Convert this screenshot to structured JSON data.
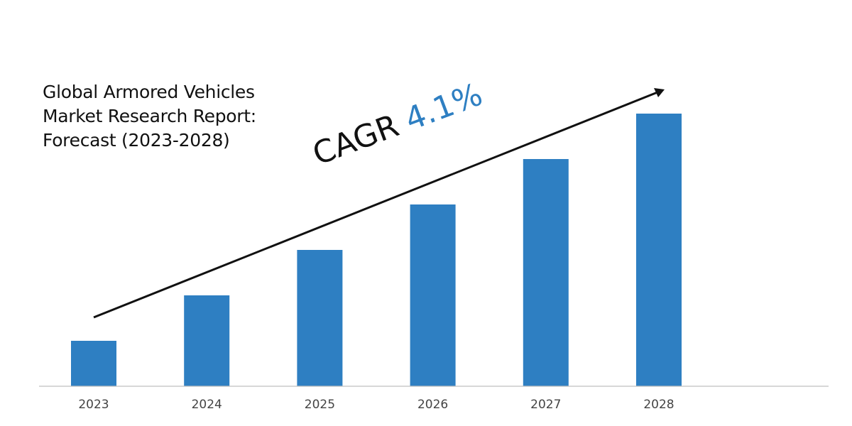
{
  "chart_data": {
    "type": "bar",
    "title_lines": [
      "Global Armored Vehicles",
      "Market Research Report:",
      "Forecast (2023-2028)"
    ],
    "categories": [
      "2023",
      "2024",
      "2025",
      "2026",
      "2027",
      "2028"
    ],
    "values": [
      1.0,
      2.0,
      3.0,
      4.0,
      5.0,
      6.0
    ],
    "ylim": [
      0,
      6.25
    ],
    "xlabel": "",
    "ylabel": "",
    "grid": false,
    "annotation": {
      "prefix": "CAGR",
      "value": "4.1%"
    },
    "colors": {
      "bar": "#2e7fc2",
      "axis": "#bfbfbf",
      "arrow": "#111111",
      "accent": "#2e7fc2"
    }
  }
}
